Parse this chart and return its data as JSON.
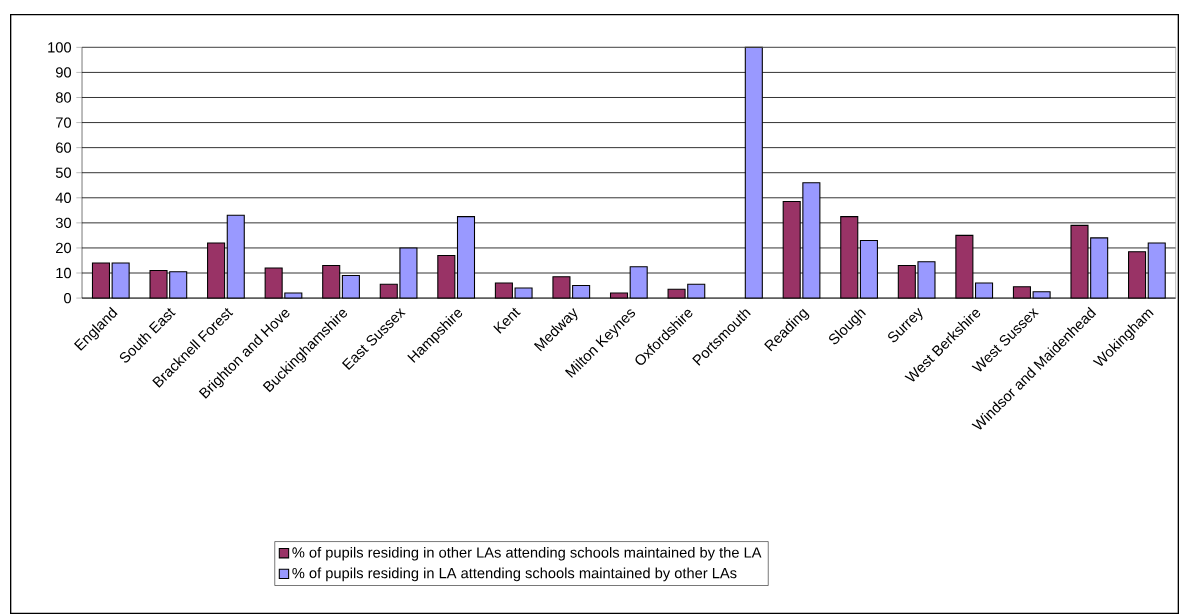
{
  "chart_data": {
    "type": "bar",
    "categories": [
      "England",
      "South East",
      "Bracknell Forest",
      "Brighton and Hove",
      "Buckinghamshire",
      "East Sussex",
      "Hampshire",
      "Kent",
      "Medway",
      "Milton Keynes",
      "Oxfordshire",
      "Portsmouth",
      "Reading",
      "Slough",
      "Surrey",
      "West Berkshire",
      "West Sussex",
      "Windsor and Maidenhead",
      "Wokingham"
    ],
    "series": [
      {
        "name": "% of pupils residing in other LAs attending schools maintained by the LA",
        "color": "#993366",
        "values": [
          14,
          11,
          22,
          12,
          13,
          5.5,
          17,
          6,
          8.5,
          2,
          3.5,
          null,
          38.5,
          32.5,
          13,
          25,
          4.5,
          29,
          18.5
        ]
      },
      {
        "name": "% of pupils residing in LA attending schools maintained by other LAs",
        "color": "#9999ff",
        "values": [
          14,
          10.5,
          33,
          2,
          9,
          20,
          32.5,
          4,
          5,
          12.5,
          5.5,
          100,
          46,
          23,
          14.5,
          6,
          2.5,
          24,
          22
        ]
      }
    ],
    "ylim": [
      0,
      100
    ],
    "yticks": [
      0,
      10,
      20,
      30,
      40,
      50,
      60,
      70,
      80,
      90,
      100
    ],
    "grid": "y",
    "legend": "bottom"
  }
}
